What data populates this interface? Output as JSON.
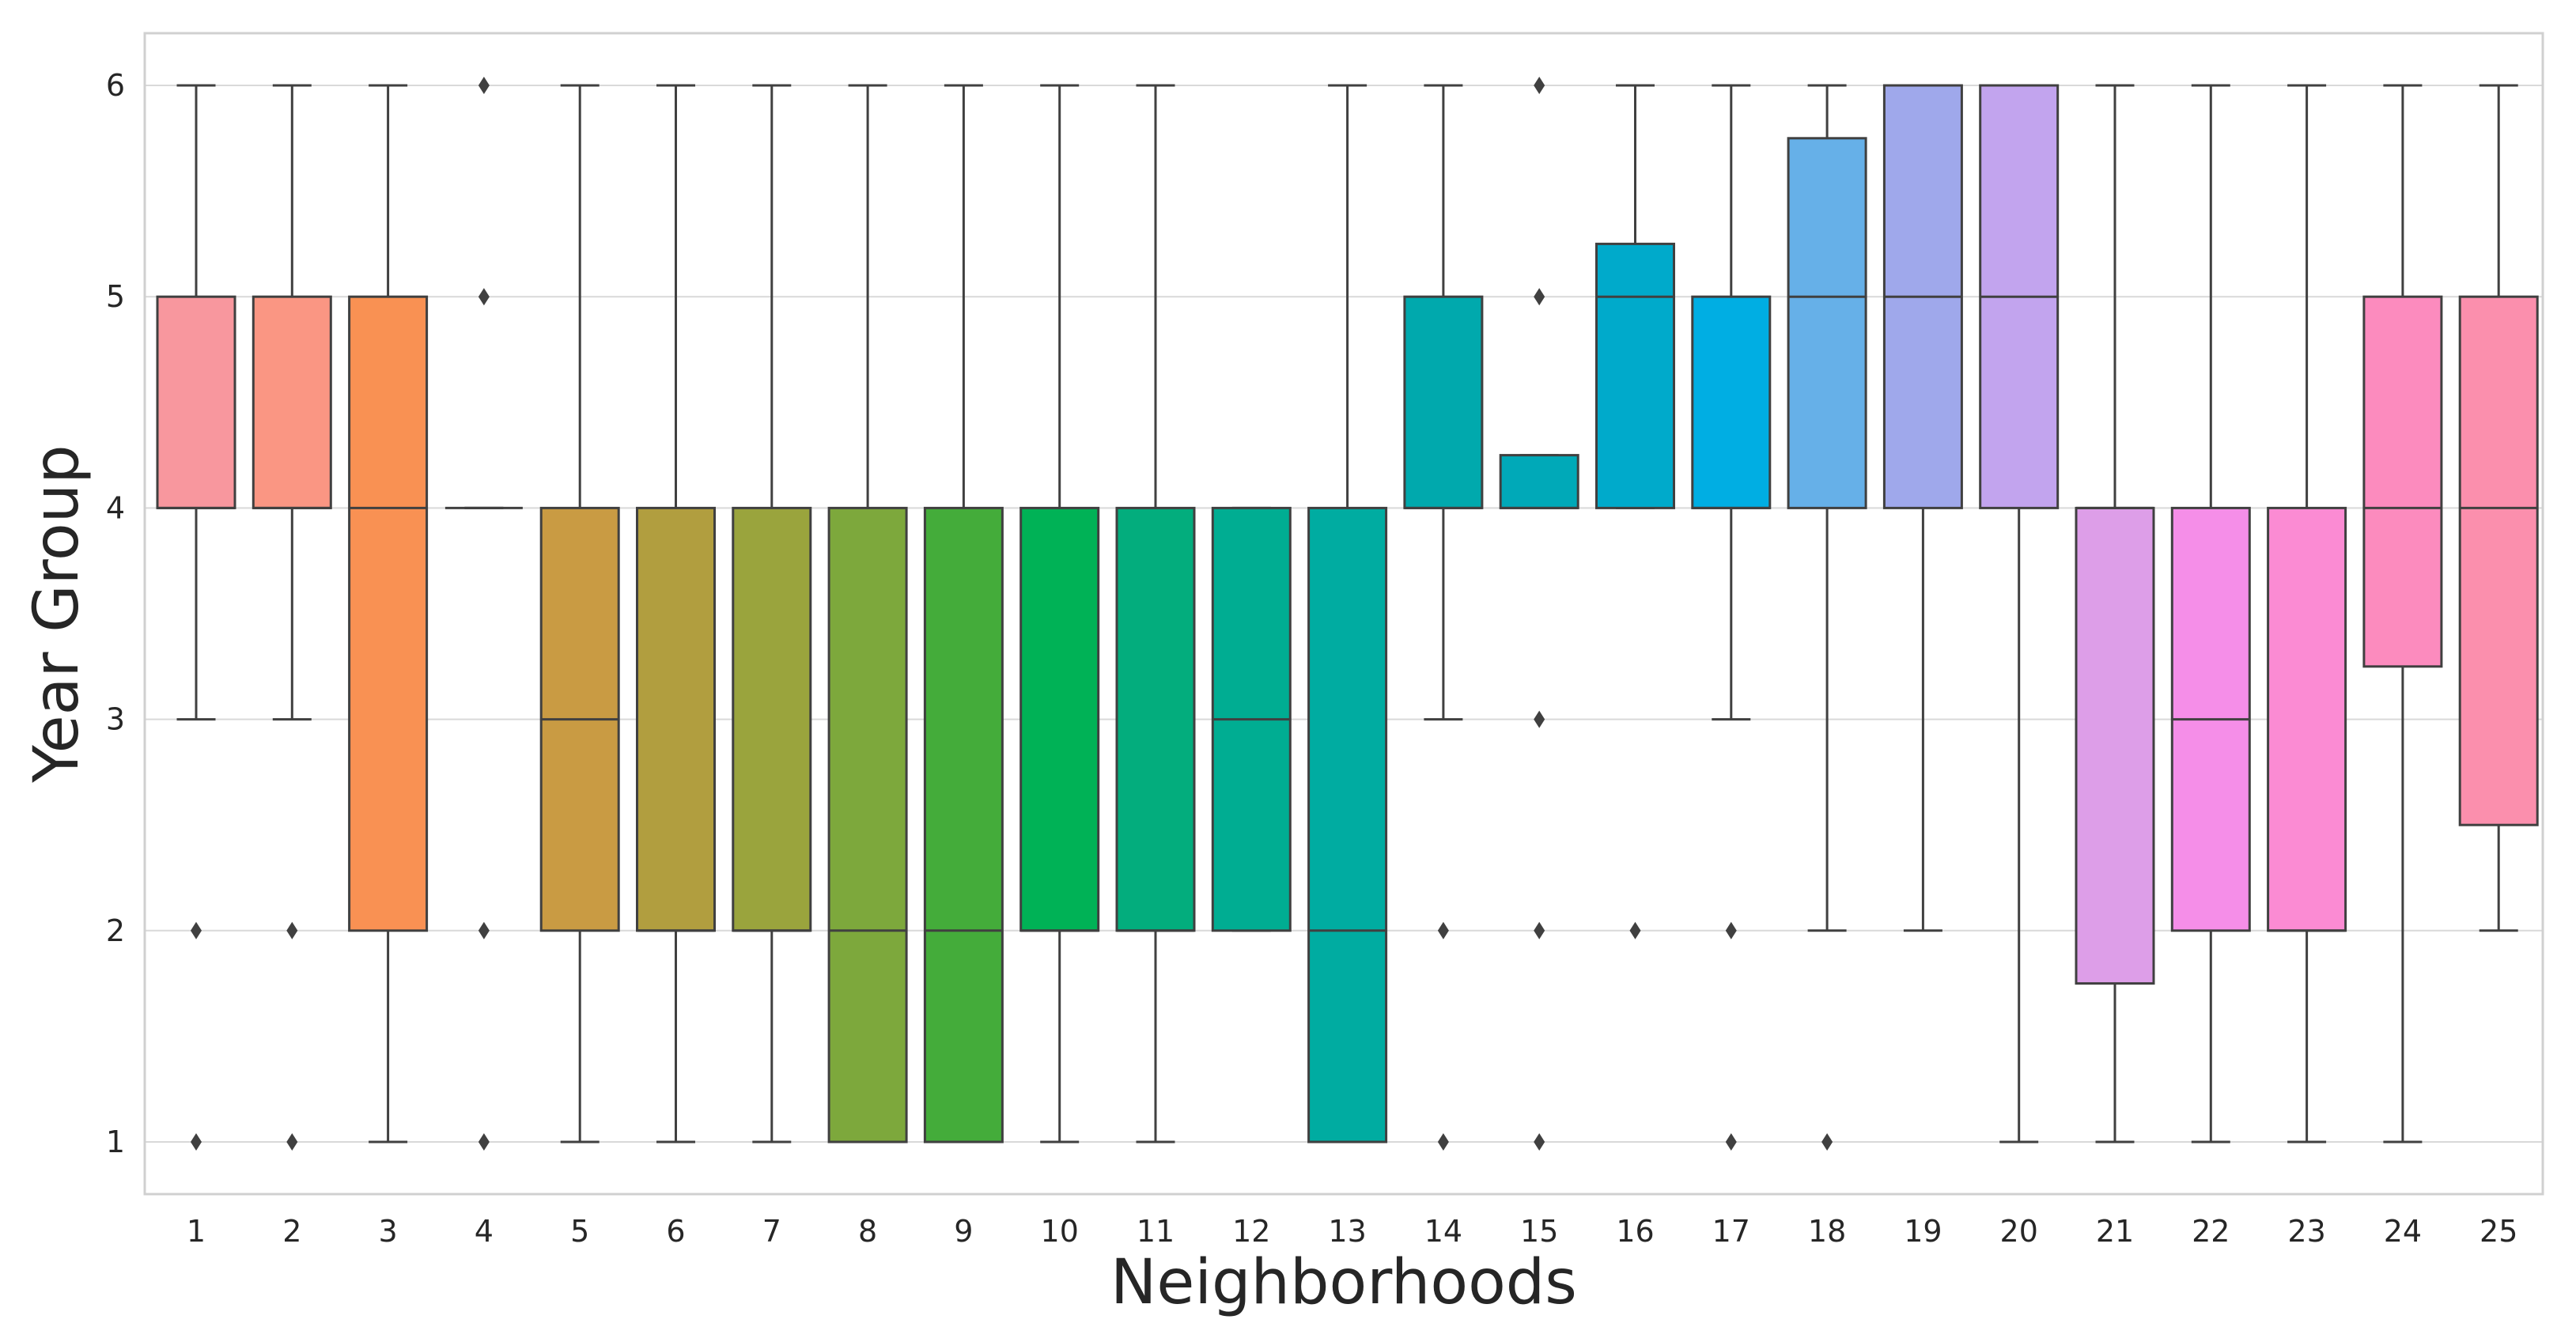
{
  "chart_data": {
    "type": "box",
    "title": "",
    "xlabel": "Neighborhoods",
    "ylabel": "Year Group",
    "ylim": [
      0.75,
      6.25
    ],
    "yticks": [
      1,
      2,
      3,
      4,
      5,
      6
    ],
    "grid": true,
    "categories": [
      "1",
      "2",
      "3",
      "4",
      "5",
      "6",
      "7",
      "8",
      "9",
      "10",
      "11",
      "12",
      "13",
      "14",
      "15",
      "16",
      "17",
      "18",
      "19",
      "20",
      "21",
      "22",
      "23",
      "24",
      "25"
    ],
    "boxes": [
      {
        "category": "1",
        "color": "#f8979e",
        "q1": 4,
        "median": 4,
        "q3": 5,
        "whislo": 3,
        "whishi": 6,
        "fliers": [
          2,
          1
        ]
      },
      {
        "category": "2",
        "color": "#fa9683",
        "q1": 4,
        "median": 4,
        "q3": 5,
        "whislo": 3,
        "whishi": 6,
        "fliers": [
          2,
          1
        ]
      },
      {
        "category": "3",
        "color": "#f99153",
        "q1": 2,
        "median": 4,
        "q3": 5,
        "whislo": 1,
        "whishi": 6,
        "fliers": []
      },
      {
        "category": "4",
        "color": "#e49f5b",
        "q1": 4,
        "median": 4,
        "q3": 4,
        "whislo": 4,
        "whishi": 4,
        "fliers": [
          6,
          5,
          2,
          1
        ]
      },
      {
        "category": "5",
        "color": "#c99b43",
        "q1": 2,
        "median": 3,
        "q3": 4,
        "whislo": 1,
        "whishi": 6,
        "fliers": []
      },
      {
        "category": "6",
        "color": "#b19e3f",
        "q1": 2,
        "median": 2,
        "q3": 4,
        "whislo": 1,
        "whishi": 6,
        "fliers": []
      },
      {
        "category": "7",
        "color": "#9aa43d",
        "q1": 2,
        "median": 2,
        "q3": 4,
        "whislo": 1,
        "whishi": 6,
        "fliers": []
      },
      {
        "category": "8",
        "color": "#7da83c",
        "q1": 1,
        "median": 2,
        "q3": 4,
        "whislo": 1,
        "whishi": 6,
        "fliers": []
      },
      {
        "category": "9",
        "color": "#44ac3a",
        "q1": 1,
        "median": 2,
        "q3": 4,
        "whislo": 1,
        "whishi": 6,
        "fliers": []
      },
      {
        "category": "10",
        "color": "#00b256",
        "q1": 2,
        "median": 2,
        "q3": 4,
        "whislo": 1,
        "whishi": 6,
        "fliers": []
      },
      {
        "category": "11",
        "color": "#03ad7d",
        "q1": 2,
        "median": 2,
        "q3": 4,
        "whislo": 1,
        "whishi": 6,
        "fliers": []
      },
      {
        "category": "12",
        "color": "#00ad92",
        "q1": 2,
        "median": 3,
        "q3": 4,
        "whislo": 2,
        "whishi": 4,
        "fliers": []
      },
      {
        "category": "13",
        "color": "#00aca1",
        "q1": 1,
        "median": 2,
        "q3": 4,
        "whislo": 1,
        "whishi": 6,
        "fliers": []
      },
      {
        "category": "14",
        "color": "#00a9ad",
        "q1": 4,
        "median": 4,
        "q3": 5,
        "whislo": 3,
        "whishi": 6,
        "fliers": [
          2,
          1
        ]
      },
      {
        "category": "15",
        "color": "#00a9b8",
        "q1": 4,
        "median": 4,
        "q3": 4.25,
        "whislo": 4,
        "whishi": 4.25,
        "fliers": [
          6,
          5,
          3,
          2,
          1
        ]
      },
      {
        "category": "16",
        "color": "#00aacb",
        "q1": 4,
        "median": 5,
        "q3": 5.25,
        "whislo": 4,
        "whishi": 6,
        "fliers": [
          2
        ]
      },
      {
        "category": "17",
        "color": "#00aee3",
        "q1": 4,
        "median": 4,
        "q3": 5,
        "whislo": 3,
        "whishi": 6,
        "fliers": [
          2,
          1
        ]
      },
      {
        "category": "18",
        "color": "#66b0e8",
        "q1": 4,
        "median": 5,
        "q3": 5.75,
        "whislo": 2,
        "whishi": 6,
        "fliers": [
          1
        ]
      },
      {
        "category": "19",
        "color": "#9fa8eb",
        "q1": 4,
        "median": 5,
        "q3": 6,
        "whislo": 2,
        "whishi": 6,
        "fliers": []
      },
      {
        "category": "20",
        "color": "#c2a4ee",
        "q1": 4,
        "median": 5,
        "q3": 6,
        "whislo": 1,
        "whishi": 6,
        "fliers": []
      },
      {
        "category": "21",
        "color": "#dd9ee8",
        "q1": 1.75,
        "median": 4,
        "q3": 4,
        "whislo": 1,
        "whishi": 6,
        "fliers": []
      },
      {
        "category": "22",
        "color": "#f58ee8",
        "q1": 2,
        "median": 3,
        "q3": 4,
        "whislo": 1,
        "whishi": 6,
        "fliers": []
      },
      {
        "category": "23",
        "color": "#fb8bd3",
        "q1": 2,
        "median": 2,
        "q3": 4,
        "whislo": 1,
        "whishi": 6,
        "fliers": []
      },
      {
        "category": "24",
        "color": "#fc8bbe",
        "q1": 3.25,
        "median": 4,
        "q3": 5,
        "whislo": 1,
        "whishi": 6,
        "fliers": []
      },
      {
        "category": "25",
        "color": "#fb8fad",
        "q1": 2.5,
        "median": 4,
        "q3": 5,
        "whislo": 2,
        "whishi": 6,
        "fliers": []
      }
    ]
  }
}
